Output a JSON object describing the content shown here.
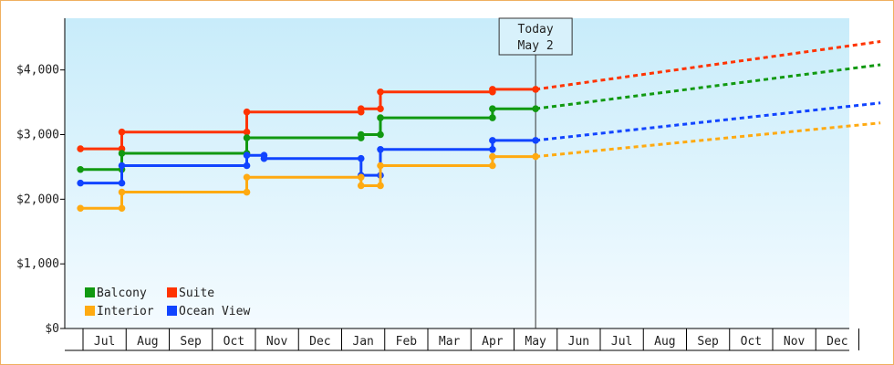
{
  "chart_data": {
    "type": "line",
    "title": "",
    "xlabel": "",
    "ylabel": "",
    "ylim": [
      0,
      4800
    ],
    "y_ticks": [
      {
        "value": 0,
        "label": "$0"
      },
      {
        "value": 1000,
        "label": "$1,000"
      },
      {
        "value": 2000,
        "label": "$2,000"
      },
      {
        "value": 3000,
        "label": "$3,000"
      },
      {
        "value": 4000,
        "label": "$4,000"
      }
    ],
    "month_labels": [
      "Jul",
      "Aug",
      "Sep",
      "Oct",
      "Nov",
      "Dec",
      "Jan",
      "Feb",
      "Mar",
      "Apr",
      "May",
      "Jun",
      "Jul",
      "Aug",
      "Sep",
      "Oct",
      "Nov",
      "Dec"
    ],
    "today_marker": {
      "line1": "Today",
      "line2": "May 2"
    },
    "grid": false,
    "legend_position": "bottom-left",
    "series": [
      {
        "name": "Suite",
        "color": "#ff3300",
        "history": [
          [
            -0.06,
            2780
          ],
          [
            0.9,
            2780
          ],
          [
            0.9,
            3040
          ],
          [
            3.8,
            3040
          ],
          [
            3.8,
            3350
          ],
          [
            6.45,
            3350
          ],
          [
            6.45,
            3400
          ],
          [
            6.9,
            3400
          ],
          [
            6.9,
            3660
          ],
          [
            9.5,
            3660
          ],
          [
            9.5,
            3700
          ],
          [
            10.5,
            3700
          ]
        ],
        "markers": [
          [
            -0.06,
            2780
          ],
          [
            0.9,
            2780
          ],
          [
            0.9,
            3040
          ],
          [
            3.8,
            3040
          ],
          [
            3.8,
            3350
          ],
          [
            6.45,
            3350
          ],
          [
            6.45,
            3400
          ],
          [
            6.9,
            3400
          ],
          [
            6.9,
            3660
          ],
          [
            9.5,
            3660
          ],
          [
            9.5,
            3700
          ],
          [
            10.5,
            3700
          ]
        ],
        "forecast": [
          [
            10.5,
            3700
          ],
          [
            18.5,
            4440
          ]
        ]
      },
      {
        "name": "Balcony",
        "color": "#119911",
        "history": [
          [
            -0.06,
            2460
          ],
          [
            0.9,
            2460
          ],
          [
            0.9,
            2710
          ],
          [
            3.8,
            2710
          ],
          [
            3.8,
            2950
          ],
          [
            6.45,
            2950
          ],
          [
            6.45,
            3000
          ],
          [
            6.9,
            3000
          ],
          [
            6.9,
            3260
          ],
          [
            9.5,
            3260
          ],
          [
            9.5,
            3400
          ],
          [
            10.5,
            3400
          ]
        ],
        "markers": [
          [
            -0.06,
            2460
          ],
          [
            0.9,
            2460
          ],
          [
            0.9,
            2710
          ],
          [
            3.8,
            2710
          ],
          [
            3.8,
            2950
          ],
          [
            6.45,
            2950
          ],
          [
            6.45,
            3000
          ],
          [
            6.9,
            3000
          ],
          [
            6.9,
            3260
          ],
          [
            9.5,
            3260
          ],
          [
            9.5,
            3400
          ],
          [
            10.5,
            3400
          ]
        ],
        "forecast": [
          [
            10.5,
            3400
          ],
          [
            18.5,
            4080
          ]
        ]
      },
      {
        "name": "Ocean View",
        "color": "#1144ff",
        "history": [
          [
            -0.06,
            2250
          ],
          [
            0.9,
            2250
          ],
          [
            0.9,
            2520
          ],
          [
            3.8,
            2520
          ],
          [
            3.8,
            2680
          ],
          [
            4.2,
            2680
          ],
          [
            4.2,
            2630
          ],
          [
            6.45,
            2630
          ],
          [
            6.45,
            2370
          ],
          [
            6.9,
            2370
          ],
          [
            6.9,
            2770
          ],
          [
            9.5,
            2770
          ],
          [
            9.5,
            2910
          ],
          [
            10.5,
            2910
          ]
        ],
        "markers": [
          [
            -0.06,
            2250
          ],
          [
            0.9,
            2250
          ],
          [
            0.9,
            2520
          ],
          [
            3.8,
            2520
          ],
          [
            3.8,
            2680
          ],
          [
            4.2,
            2680
          ],
          [
            4.2,
            2630
          ],
          [
            6.45,
            2630
          ],
          [
            6.45,
            2370
          ],
          [
            6.9,
            2370
          ],
          [
            6.9,
            2770
          ],
          [
            9.5,
            2770
          ],
          [
            9.5,
            2910
          ],
          [
            10.5,
            2910
          ]
        ],
        "forecast": [
          [
            10.5,
            2910
          ],
          [
            18.5,
            3490
          ]
        ]
      },
      {
        "name": "Interior",
        "color": "#ffaa11",
        "history": [
          [
            -0.06,
            1860
          ],
          [
            0.9,
            1860
          ],
          [
            0.9,
            2110
          ],
          [
            3.8,
            2110
          ],
          [
            3.8,
            2340
          ],
          [
            6.45,
            2340
          ],
          [
            6.45,
            2210
          ],
          [
            6.9,
            2210
          ],
          [
            6.9,
            2520
          ],
          [
            9.5,
            2520
          ],
          [
            9.5,
            2660
          ],
          [
            10.5,
            2660
          ]
        ],
        "markers": [
          [
            -0.06,
            1860
          ],
          [
            0.9,
            1860
          ],
          [
            0.9,
            2110
          ],
          [
            3.8,
            2110
          ],
          [
            3.8,
            2340
          ],
          [
            6.45,
            2340
          ],
          [
            6.45,
            2210
          ],
          [
            6.9,
            2210
          ],
          [
            6.9,
            2520
          ],
          [
            9.5,
            2520
          ],
          [
            9.5,
            2660
          ],
          [
            10.5,
            2660
          ]
        ],
        "forecast": [
          [
            10.5,
            2660
          ],
          [
            18.5,
            3180
          ]
        ]
      }
    ],
    "legend_order": [
      "Balcony",
      "Suite",
      "Interior",
      "Ocean View"
    ]
  }
}
